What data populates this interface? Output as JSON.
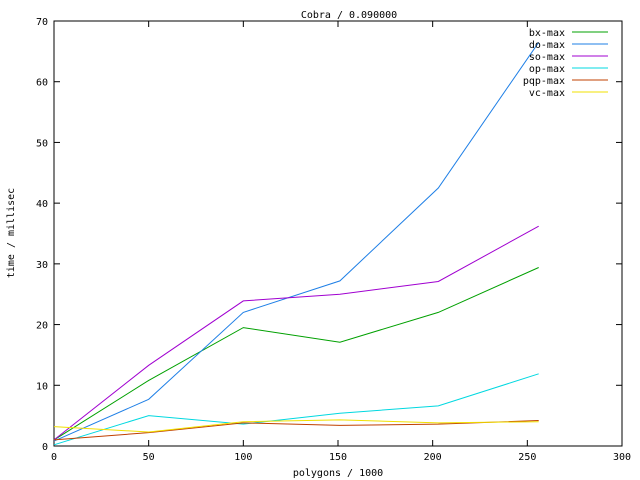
{
  "chart_data": {
    "type": "line",
    "title": "Cobra / 0.090000",
    "xlabel": "polygons / 1000",
    "ylabel": "time / millisec",
    "xlim": [
      0,
      300
    ],
    "ylim": [
      0,
      70
    ],
    "xticks": [
      0,
      50,
      100,
      150,
      200,
      250,
      300
    ],
    "yticks": [
      0,
      10,
      20,
      30,
      40,
      50,
      60,
      70
    ],
    "grid": false,
    "legend_position": "top-right",
    "series": [
      {
        "name": "bx-max",
        "color": "#00a000",
        "x": [
          0,
          50,
          100,
          151,
          203,
          256
        ],
        "y": [
          1.0,
          10.8,
          19.5,
          17.1,
          22.0,
          29.4
        ]
      },
      {
        "name": "do-max",
        "color": "#1e7fe6",
        "x": [
          0,
          50,
          100,
          151,
          203,
          256
        ],
        "y": [
          0.8,
          7.7,
          22.0,
          27.2,
          42.5,
          66.5
        ]
      },
      {
        "name": "so-max",
        "color": "#a000d0",
        "x": [
          0,
          50,
          100,
          151,
          203,
          256
        ],
        "y": [
          1.0,
          13.3,
          23.9,
          25.0,
          27.1,
          36.2
        ]
      },
      {
        "name": "op-max",
        "color": "#00d8e0",
        "x": [
          0,
          50,
          100,
          151,
          203,
          256
        ],
        "y": [
          0.2,
          5.0,
          3.6,
          5.4,
          6.6,
          11.9
        ]
      },
      {
        "name": "pqp-max",
        "color": "#c04000",
        "x": [
          0,
          50,
          100,
          151,
          203,
          256
        ],
        "y": [
          1.0,
          2.2,
          3.8,
          3.4,
          3.6,
          4.2
        ]
      },
      {
        "name": "vc-max",
        "color": "#f0e000",
        "x": [
          0,
          50,
          100,
          151,
          203,
          256
        ],
        "y": [
          3.2,
          2.3,
          4.0,
          4.3,
          3.8,
          4.0
        ]
      }
    ]
  }
}
